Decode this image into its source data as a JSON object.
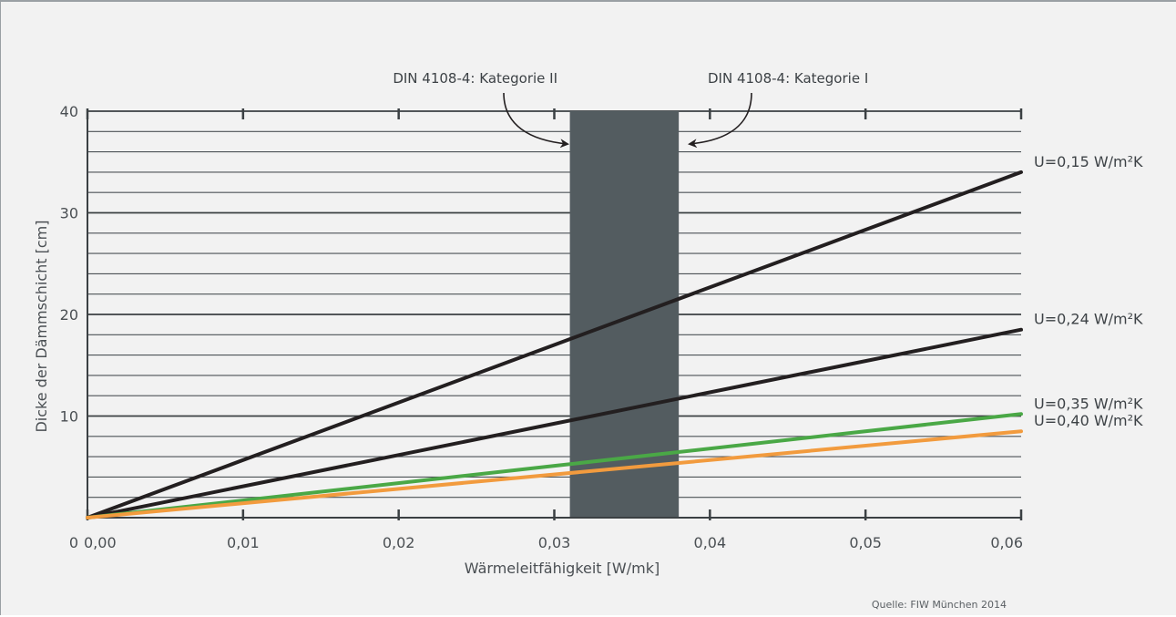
{
  "chart_data": {
    "type": "line",
    "xlabel": "Wärmeleitfähigkeit [W/mk]",
    "ylabel": "Dicke der Dämmschicht [cm]",
    "xlim": [
      0,
      0.06
    ],
    "ylim": [
      0,
      40
    ],
    "x_ticks": [
      "0,00",
      "0,01",
      "0,02",
      "0,03",
      "0,04",
      "0,05",
      "0,06"
    ],
    "y_ticks": [
      "0",
      "10",
      "20",
      "30",
      "40"
    ],
    "grid": true,
    "series": [
      {
        "name": "U=0,15 W/m²K",
        "color": "#231f20",
        "x": [
          0,
          0.06
        ],
        "y": [
          0,
          34
        ]
      },
      {
        "name": "U=0,24 W/m²K",
        "color": "#231f20",
        "x": [
          0,
          0.06
        ],
        "y": [
          0,
          18.5
        ]
      },
      {
        "name": "U=0,35 W/m²K",
        "color": "#4aa846",
        "x": [
          0,
          0.06
        ],
        "y": [
          0,
          10.2
        ]
      },
      {
        "name": "U=0,40 W/m²K",
        "color": "#f29b3e",
        "x": [
          0,
          0.06
        ],
        "y": [
          0,
          8.5
        ]
      }
    ],
    "band": {
      "x_start": 0.031,
      "x_end": 0.038,
      "color": "#535c60"
    },
    "annotations": [
      {
        "text": "DIN 4108-4: Kategorie II",
        "points_to": "left edge of band"
      },
      {
        "text": "DIN 4108-4: Kategorie I",
        "points_to": "right edge of band"
      }
    ],
    "source": "Quelle: FIW München 2014"
  }
}
